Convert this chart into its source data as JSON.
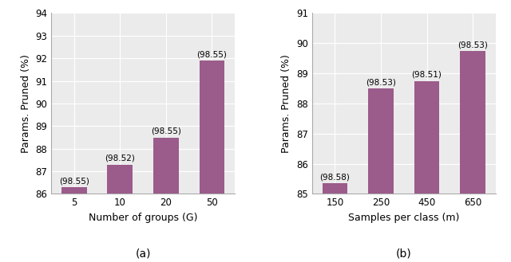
{
  "chart_a": {
    "categories": [
      "5",
      "10",
      "20",
      "50"
    ],
    "values": [
      86.3,
      87.3,
      88.5,
      91.9
    ],
    "annotations": [
      "(98.55)",
      "(98.52)",
      "(98.55)",
      "(98.55)"
    ],
    "xlabel": "Number of groups (G)",
    "ylabel": "Params. Pruned (%)",
    "ylim": [
      86,
      94
    ],
    "yticks": [
      86,
      87,
      88,
      89,
      90,
      91,
      92,
      93,
      94
    ],
    "label": "(a)"
  },
  "chart_b": {
    "categories": [
      "150",
      "250",
      "450",
      "650"
    ],
    "values": [
      85.35,
      88.5,
      88.75,
      89.75
    ],
    "annotations": [
      "(98.58)",
      "(98.53)",
      "(98.51)",
      "(98.53)"
    ],
    "xlabel": "Samples per class (m)",
    "ylabel": "Params. Pruned (%)",
    "ylim": [
      85,
      91
    ],
    "yticks": [
      85,
      86,
      87,
      88,
      89,
      90,
      91
    ],
    "label": "(b)"
  },
  "bar_color": "#9b5b8b",
  "bg_color": "#ebebeb",
  "annotation_fontsize": 7.5,
  "label_fontsize": 9,
  "tick_fontsize": 8.5,
  "sublabel_fontsize": 10
}
